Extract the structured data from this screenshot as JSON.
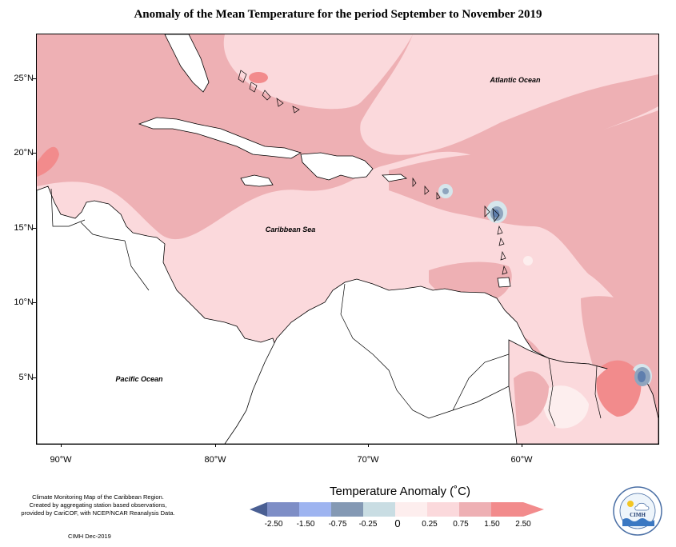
{
  "title": "Anomaly of the Mean Temperature for the period September to November 2019",
  "map": {
    "lat_labels": [
      "25°N",
      "20°N",
      "15°N",
      "10°N",
      "5°N"
    ],
    "lon_labels": [
      "90°W",
      "80°W",
      "70°W",
      "60°W"
    ],
    "ocean_labels": {
      "atlantic": "Atlantic Ocean",
      "caribbean": "Caribbean Sea",
      "pacific": "Pacific Ocean"
    },
    "colors": {
      "land": "#ffffff",
      "anomaly_0_to_025": "#fdeeee",
      "anomaly_025_to_075": "#fbd9dc",
      "anomaly_075_to_150": "#eeb0b4",
      "anomaly_150_to_250": "#f28b8c",
      "anomaly_neg025_to_0": "#d6e6ec",
      "anomaly_neg075_to_neg025": "#8fa5be",
      "anomaly_neg150_to_neg075": "#5f7fae"
    }
  },
  "notes": {
    "line1": "Climate Monitoring Map of the Caribbean Region.",
    "line2": "Created by aggregating station based observations,",
    "line3": "provided by CariCOF, with NCEP/NCAR Reanalysis Data.",
    "credit": "CIMH Dec-2019"
  },
  "legend": {
    "title": "Temperature Anomaly (˚C)",
    "labels": [
      "-2.50",
      "-1.50",
      "-0.75",
      "-0.25",
      "0",
      "0.25",
      "0.75",
      "1.50",
      "2.50"
    ],
    "colors": [
      "#4a5f93",
      "#7e8ec6",
      "#9eb4f0",
      "#8499b4",
      "#c9dde3",
      "#fdeeee",
      "#fbd9dc",
      "#eeb0b4",
      "#f28b8c"
    ]
  },
  "logo": {
    "label": "CIMH"
  }
}
